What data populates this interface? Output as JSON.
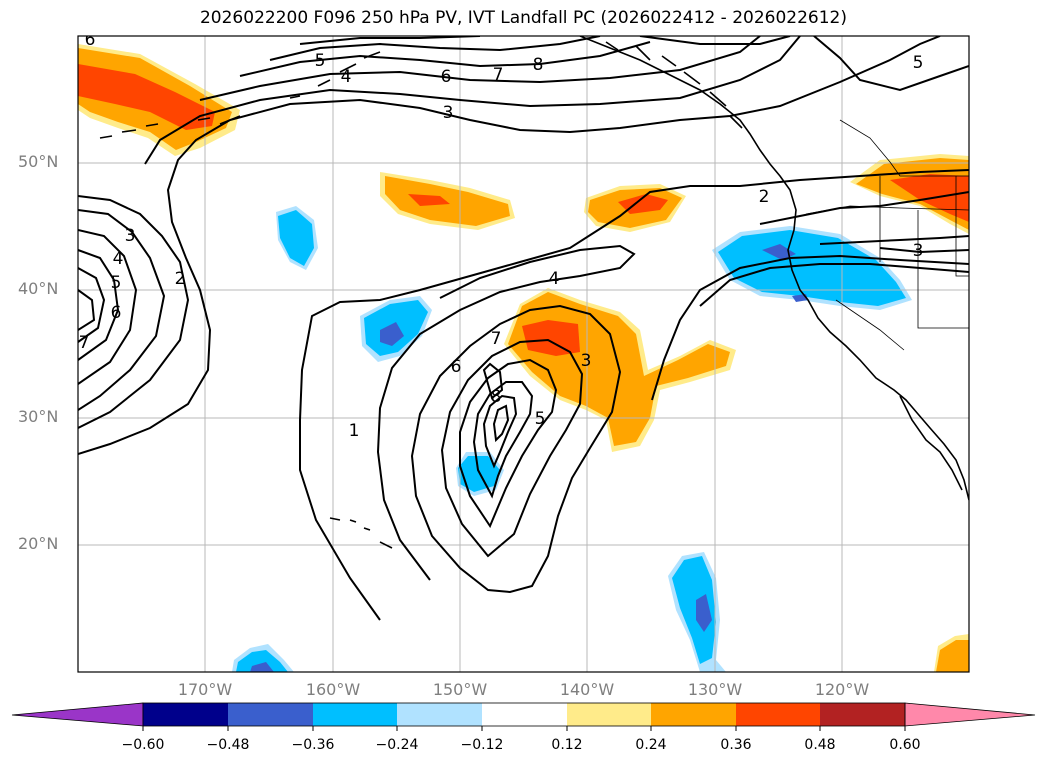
{
  "title": "2026022200 F096 250 hPa PV, IVT Landfall PC (2026022412 - 2026022612)",
  "lat_labels": [
    "50°N",
    "40°N",
    "30°N",
    "20°N"
  ],
  "lon_labels": [
    "170°W",
    "160°W",
    "150°W",
    "140°W",
    "130°W",
    "120°W"
  ],
  "colorbar": {
    "ticks": [
      "−0.60",
      "−0.48",
      "−0.36",
      "−0.24",
      "−0.12",
      "0.12",
      "0.24",
      "0.36",
      "0.48",
      "0.60"
    ],
    "colors": [
      "#9a35c8",
      "#00008b",
      "#3a5fcd",
      "#00bfff",
      "#b0e2ff",
      "#ffffff",
      "#ffeb8a",
      "#ffa500",
      "#ff4500",
      "#b22222",
      "#ff88aa"
    ]
  },
  "contour_labels": [
    "6",
    "5",
    "4",
    "6",
    "7",
    "8",
    "3",
    "5",
    "2",
    "3",
    "3",
    "4",
    "5",
    "6",
    "2",
    "7",
    "4",
    "7",
    "6",
    "8",
    "3",
    "5",
    "1"
  ]
}
